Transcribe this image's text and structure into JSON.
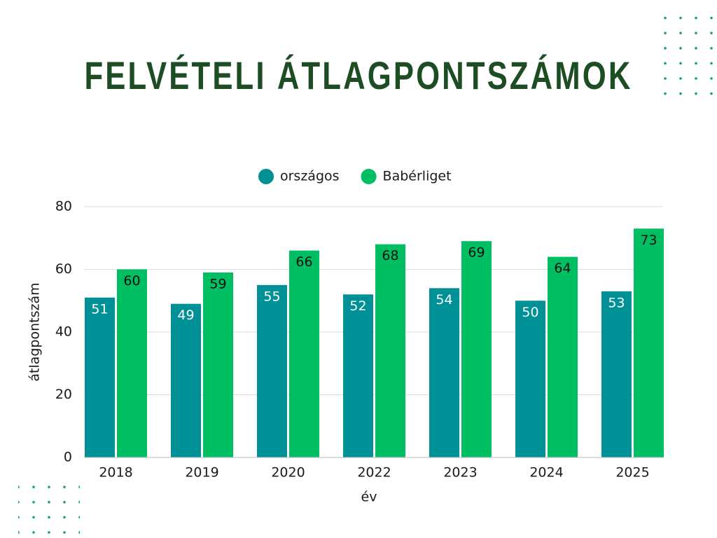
{
  "chart_data": {
    "type": "bar",
    "title": "FELVÉTELI ÁTLAGPONTSZÁMOK",
    "x_label": "év",
    "y_label": "átlagpontszám",
    "categories": [
      "2018",
      "2019",
      "2020",
      "2022",
      "2023",
      "2024",
      "2025"
    ],
    "series": [
      {
        "name": "országos",
        "color": "#009197",
        "values": [
          51,
          49,
          55,
          52,
          54,
          50,
          53
        ]
      },
      {
        "name": "Babérliget",
        "color": "#00bf63",
        "values": [
          60,
          59,
          66,
          68,
          69,
          64,
          73
        ]
      }
    ],
    "ylim": [
      0,
      80
    ],
    "yticks": [
      0,
      20,
      40,
      60,
      80
    ],
    "grid": true,
    "legend": "top"
  }
}
